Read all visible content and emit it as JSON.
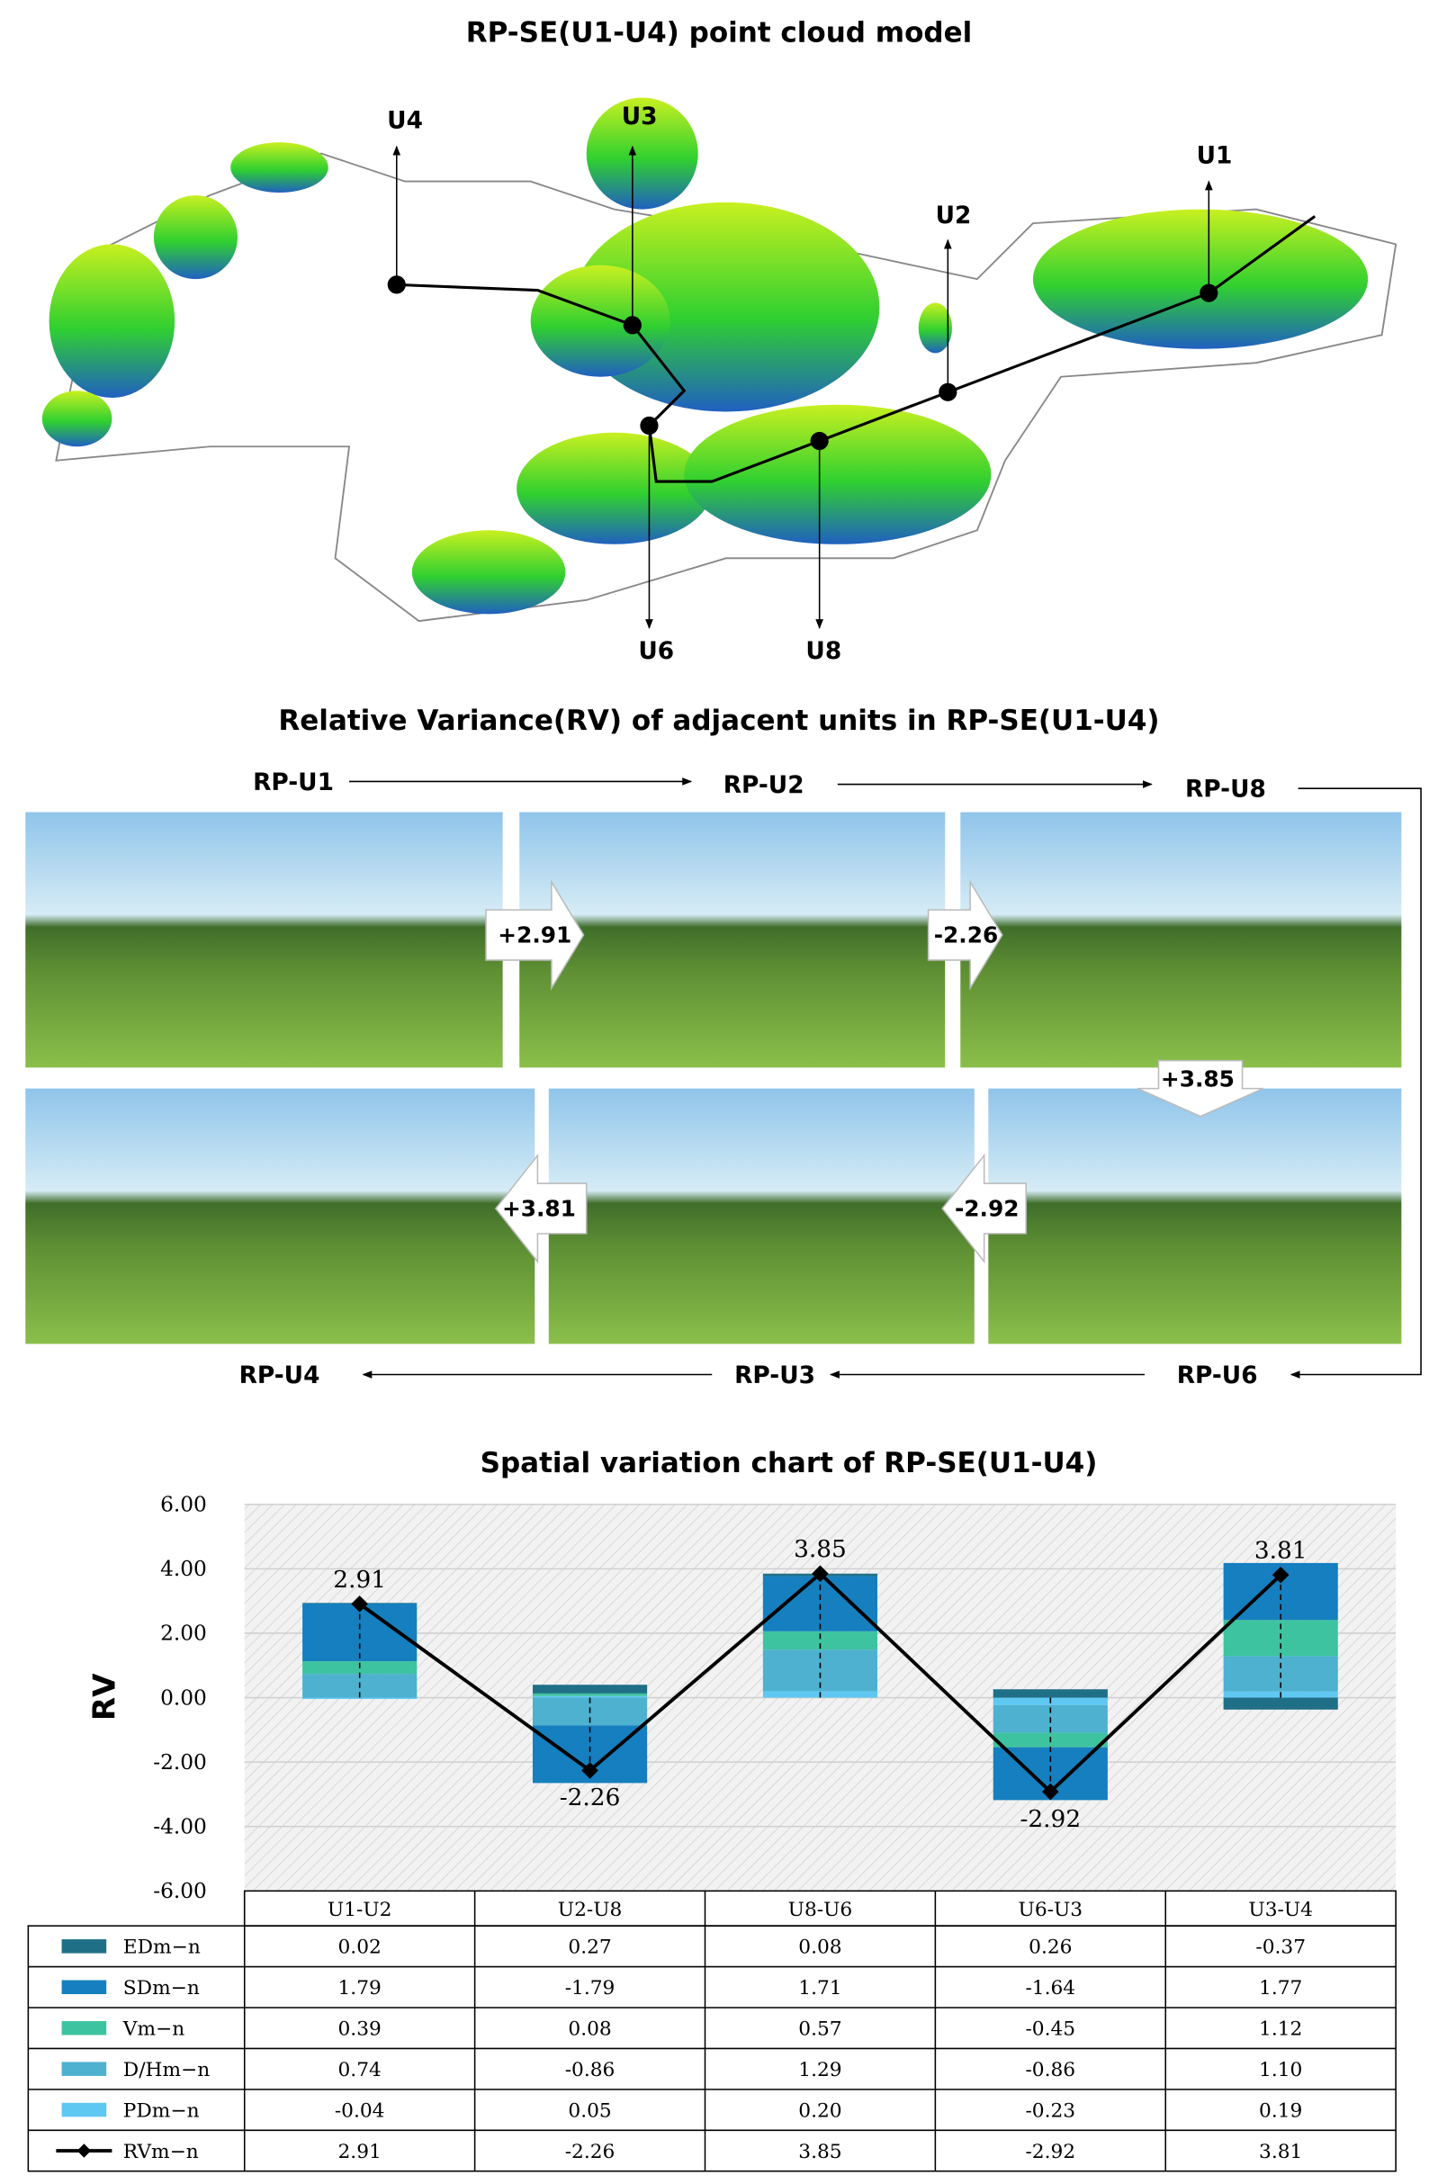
{
  "point_cloud": {
    "title": "RP-SE(U1-U4) point cloud model",
    "labels": [
      "U4",
      "U3",
      "U2",
      "U1",
      "U6",
      "U8"
    ]
  },
  "photo_panel": {
    "title": "Relative Variance(RV) of adjacent units in RP-SE(U1-U4)",
    "units": [
      "RP-U1",
      "RP-U2",
      "RP-U8",
      "RP-U6",
      "RP-U3",
      "RP-U4"
    ],
    "transitions": [
      "+2.91",
      "-2.26",
      "+3.85",
      "-2.92",
      "+3.81"
    ]
  },
  "chart_data": {
    "type": "bar",
    "title": "Spatial variation chart of RP-SE(U1-U4)",
    "y_label": "RV",
    "categories": [
      "U1-U2",
      "U2-U8",
      "U8-U6",
      "U6-U3",
      "U3-U4"
    ],
    "ylim": [
      -6,
      6
    ],
    "yticks": [
      {
        "value": -6,
        "label": "-6.00"
      },
      {
        "value": -4,
        "label": "-4.00"
      },
      {
        "value": -2,
        "label": "-2.00"
      },
      {
        "value": 0,
        "label": "0.00"
      },
      {
        "value": 2,
        "label": "2.00"
      },
      {
        "value": 4,
        "label": "4.00"
      },
      {
        "value": 6,
        "label": "6.00"
      }
    ],
    "grid": true,
    "series": [
      {
        "name": "EDm−n",
        "color": "#1f6f87",
        "values": [
          0.02,
          0.27,
          0.08,
          0.26,
          -0.37
        ],
        "value_labels": [
          "0.02",
          "0.27",
          "0.08",
          "0.26",
          "-0.37"
        ]
      },
      {
        "name": "SDm−n",
        "color": "#157fbf",
        "values": [
          1.79,
          -1.79,
          1.71,
          -1.64,
          1.77
        ],
        "value_labels": [
          "1.79",
          "-1.79",
          "1.71",
          "-1.64",
          "1.77"
        ]
      },
      {
        "name": "Vm−n",
        "color": "#3ec3a0",
        "values": [
          0.39,
          0.08,
          0.57,
          -0.45,
          1.12
        ],
        "value_labels": [
          "0.39",
          "0.08",
          "0.57",
          "-0.45",
          "1.12"
        ]
      },
      {
        "name": "D/Hm−n",
        "color": "#4db1cf",
        "values": [
          0.74,
          -0.86,
          1.29,
          -0.86,
          1.1
        ],
        "value_labels": [
          "0.74",
          "-0.86",
          "1.29",
          "-0.86",
          "1.10"
        ]
      },
      {
        "name": "PDm−n",
        "color": "#5fc8f2",
        "values": [
          -0.04,
          0.05,
          0.2,
          -0.23,
          0.19
        ],
        "value_labels": [
          "-0.04",
          "0.05",
          "0.20",
          "-0.23",
          "0.19"
        ]
      },
      {
        "name": "RVm−n",
        "type": "line",
        "color": "#000000",
        "values": [
          2.91,
          -2.26,
          3.85,
          -2.92,
          3.81
        ]
      }
    ]
  }
}
